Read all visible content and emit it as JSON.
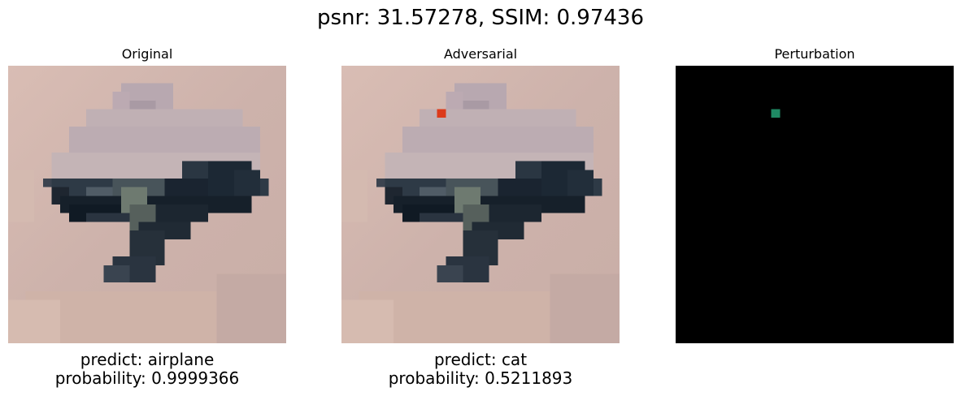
{
  "figure": {
    "title": "psnr: 31.57278, SSIM: 0.97436"
  },
  "panels": {
    "original": {
      "title": "Original",
      "predict_line": "predict: airplane",
      "probability_line": "probability: 0.9999366"
    },
    "adversarial": {
      "title": "Adversarial",
      "predict_line": "predict: cat",
      "probability_line": "probability: 0.5211893",
      "perturbed_pixel_color": "#dc3a1a"
    },
    "perturbation": {
      "title": "Perturbation",
      "background_color": "#000000",
      "perturbed_pixel_color": "#1f8a64"
    }
  },
  "colors": {
    "sky_light": "#d8bcb2",
    "sky_mid": "#c8aca6",
    "haze": "#b8a8b4",
    "aircraft_dark": "#14202c",
    "aircraft_mid": "#2c3c48",
    "aircraft_light": "#6e7a70"
  }
}
